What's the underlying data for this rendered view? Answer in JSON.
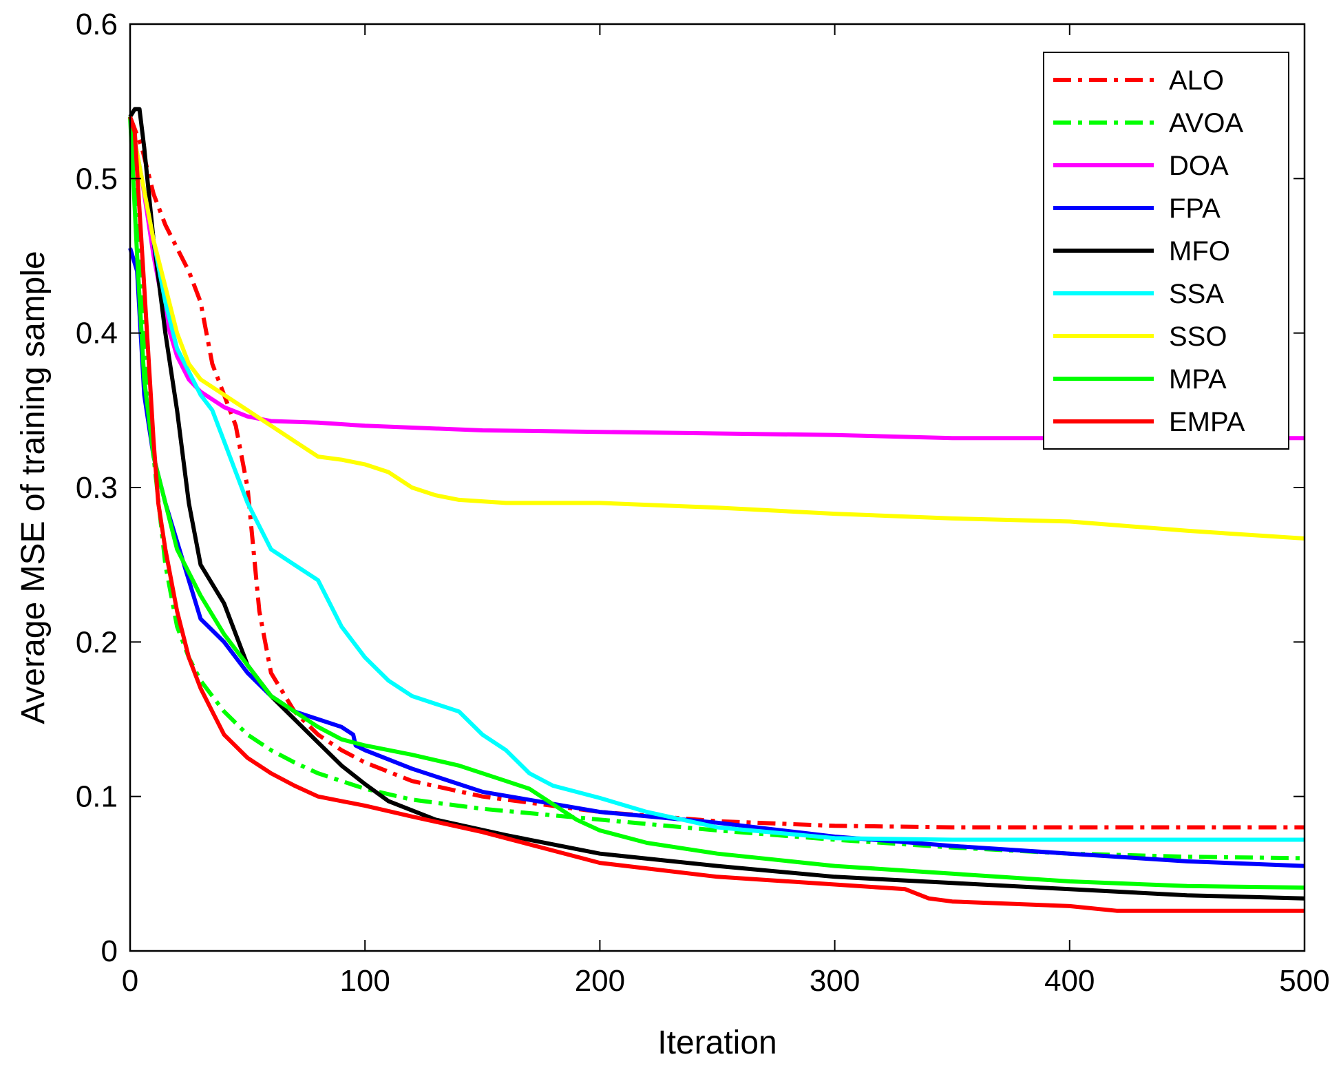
{
  "chart_data": {
    "type": "line",
    "xlabel": "Iteration",
    "ylabel": "Average MSE of training sample",
    "xlim": [
      0,
      500
    ],
    "ylim": [
      0,
      0.6
    ],
    "xticks": [
      "0",
      "100",
      "200",
      "300",
      "400",
      "500"
    ],
    "yticks": [
      "0",
      "0.1",
      "0.2",
      "0.3",
      "0.4",
      "0.5",
      "0.6"
    ],
    "grid": false,
    "legend_position": "top-right",
    "series": [
      {
        "name": "ALO",
        "color": "#ff0000",
        "dash": "dash-dot",
        "x": [
          0,
          5,
          10,
          15,
          20,
          25,
          30,
          35,
          40,
          45,
          50,
          55,
          60,
          70,
          80,
          90,
          100,
          120,
          150,
          200,
          250,
          300,
          350,
          400,
          450,
          500
        ],
        "y": [
          0.54,
          0.52,
          0.49,
          0.47,
          0.455,
          0.44,
          0.42,
          0.38,
          0.36,
          0.34,
          0.3,
          0.22,
          0.18,
          0.155,
          0.14,
          0.13,
          0.122,
          0.11,
          0.1,
          0.09,
          0.084,
          0.081,
          0.08,
          0.08,
          0.08,
          0.08
        ]
      },
      {
        "name": "AVOA",
        "color": "#00ff00",
        "dash": "dash-dot",
        "x": [
          0,
          3,
          6,
          10,
          15,
          20,
          25,
          30,
          40,
          50,
          60,
          70,
          80,
          100,
          120,
          150,
          200,
          250,
          300,
          350,
          400,
          450,
          500
        ],
        "y": [
          0.54,
          0.5,
          0.4,
          0.32,
          0.25,
          0.21,
          0.19,
          0.175,
          0.155,
          0.14,
          0.13,
          0.122,
          0.115,
          0.105,
          0.098,
          0.092,
          0.085,
          0.078,
          0.072,
          0.067,
          0.063,
          0.061,
          0.06
        ]
      },
      {
        "name": "DOA",
        "color": "#ff00ff",
        "dash": "solid",
        "x": [
          0,
          5,
          10,
          15,
          20,
          25,
          30,
          40,
          50,
          60,
          80,
          100,
          150,
          200,
          250,
          300,
          350,
          400,
          450,
          500
        ],
        "y": [
          0.54,
          0.5,
          0.45,
          0.41,
          0.385,
          0.37,
          0.362,
          0.352,
          0.346,
          0.343,
          0.342,
          0.34,
          0.337,
          0.336,
          0.335,
          0.334,
          0.332,
          0.332,
          0.332,
          0.332
        ],
        "markers": false
      },
      {
        "name": "FPA",
        "color": "#0000ff",
        "dash": "solid",
        "x": [
          0,
          3,
          6,
          10,
          15,
          20,
          25,
          30,
          40,
          50,
          60,
          70,
          80,
          90,
          95,
          96,
          100,
          120,
          150,
          200,
          250,
          300,
          350,
          400,
          450,
          500
        ],
        "y": [
          0.455,
          0.44,
          0.36,
          0.32,
          0.29,
          0.265,
          0.24,
          0.215,
          0.2,
          0.18,
          0.165,
          0.155,
          0.15,
          0.145,
          0.14,
          0.133,
          0.13,
          0.118,
          0.103,
          0.09,
          0.083,
          0.074,
          0.068,
          0.063,
          0.058,
          0.055
        ]
      },
      {
        "name": "MFO",
        "color": "#000000",
        "dash": "solid",
        "x": [
          0,
          2,
          4,
          6,
          10,
          15,
          20,
          25,
          30,
          40,
          50,
          60,
          70,
          80,
          90,
          100,
          110,
          130,
          160,
          200,
          250,
          300,
          350,
          400,
          450,
          500
        ],
        "y": [
          0.54,
          0.545,
          0.545,
          0.52,
          0.46,
          0.4,
          0.35,
          0.29,
          0.25,
          0.225,
          0.185,
          0.165,
          0.15,
          0.135,
          0.12,
          0.108,
          0.097,
          0.085,
          0.075,
          0.063,
          0.055,
          0.048,
          0.044,
          0.04,
          0.036,
          0.034
        ]
      },
      {
        "name": "SSA",
        "color": "#00ffff",
        "dash": "solid",
        "x": [
          0,
          5,
          10,
          15,
          20,
          30,
          35,
          40,
          45,
          50,
          60,
          70,
          80,
          90,
          100,
          110,
          120,
          130,
          140,
          150,
          160,
          170,
          180,
          200,
          220,
          250,
          300,
          350,
          400,
          450,
          500
        ],
        "y": [
          0.54,
          0.5,
          0.46,
          0.42,
          0.39,
          0.36,
          0.35,
          0.33,
          0.31,
          0.29,
          0.26,
          0.25,
          0.24,
          0.21,
          0.19,
          0.175,
          0.165,
          0.16,
          0.155,
          0.14,
          0.13,
          0.115,
          0.107,
          0.099,
          0.09,
          0.08,
          0.073,
          0.072,
          0.072,
          0.072,
          0.072
        ]
      },
      {
        "name": "SSO",
        "color": "#ffff00",
        "dash": "solid",
        "x": [
          0,
          5,
          10,
          15,
          20,
          25,
          30,
          40,
          50,
          55,
          60,
          70,
          80,
          90,
          100,
          110,
          120,
          130,
          140,
          160,
          200,
          250,
          300,
          350,
          400,
          450,
          500
        ],
        "y": [
          0.54,
          0.5,
          0.46,
          0.43,
          0.4,
          0.38,
          0.37,
          0.36,
          0.35,
          0.345,
          0.34,
          0.33,
          0.32,
          0.318,
          0.315,
          0.31,
          0.3,
          0.295,
          0.292,
          0.29,
          0.29,
          0.287,
          0.283,
          0.28,
          0.278,
          0.272,
          0.267
        ]
      },
      {
        "name": "MPA",
        "color": "#00ff00",
        "dash": "solid",
        "x": [
          0,
          3,
          6,
          10,
          15,
          20,
          30,
          40,
          50,
          60,
          70,
          80,
          90,
          100,
          120,
          140,
          160,
          170,
          180,
          190,
          200,
          220,
          250,
          300,
          350,
          400,
          450,
          500
        ],
        "y": [
          0.54,
          0.45,
          0.37,
          0.32,
          0.29,
          0.26,
          0.23,
          0.205,
          0.185,
          0.165,
          0.155,
          0.145,
          0.137,
          0.133,
          0.127,
          0.12,
          0.11,
          0.105,
          0.095,
          0.085,
          0.078,
          0.07,
          0.063,
          0.055,
          0.05,
          0.045,
          0.042,
          0.041
        ]
      },
      {
        "name": "EMPA",
        "color": "#ff0000",
        "dash": "solid",
        "x": [
          0,
          2,
          4,
          6,
          8,
          10,
          12,
          15,
          20,
          25,
          30,
          35,
          40,
          50,
          60,
          70,
          80,
          90,
          100,
          120,
          150,
          200,
          250,
          300,
          330,
          340,
          350,
          400,
          420,
          450,
          500
        ],
        "y": [
          0.54,
          0.53,
          0.48,
          0.43,
          0.38,
          0.33,
          0.29,
          0.26,
          0.22,
          0.19,
          0.17,
          0.155,
          0.14,
          0.125,
          0.115,
          0.107,
          0.1,
          0.097,
          0.094,
          0.087,
          0.077,
          0.057,
          0.048,
          0.043,
          0.04,
          0.034,
          0.032,
          0.029,
          0.026,
          0.026,
          0.026
        ]
      }
    ]
  }
}
